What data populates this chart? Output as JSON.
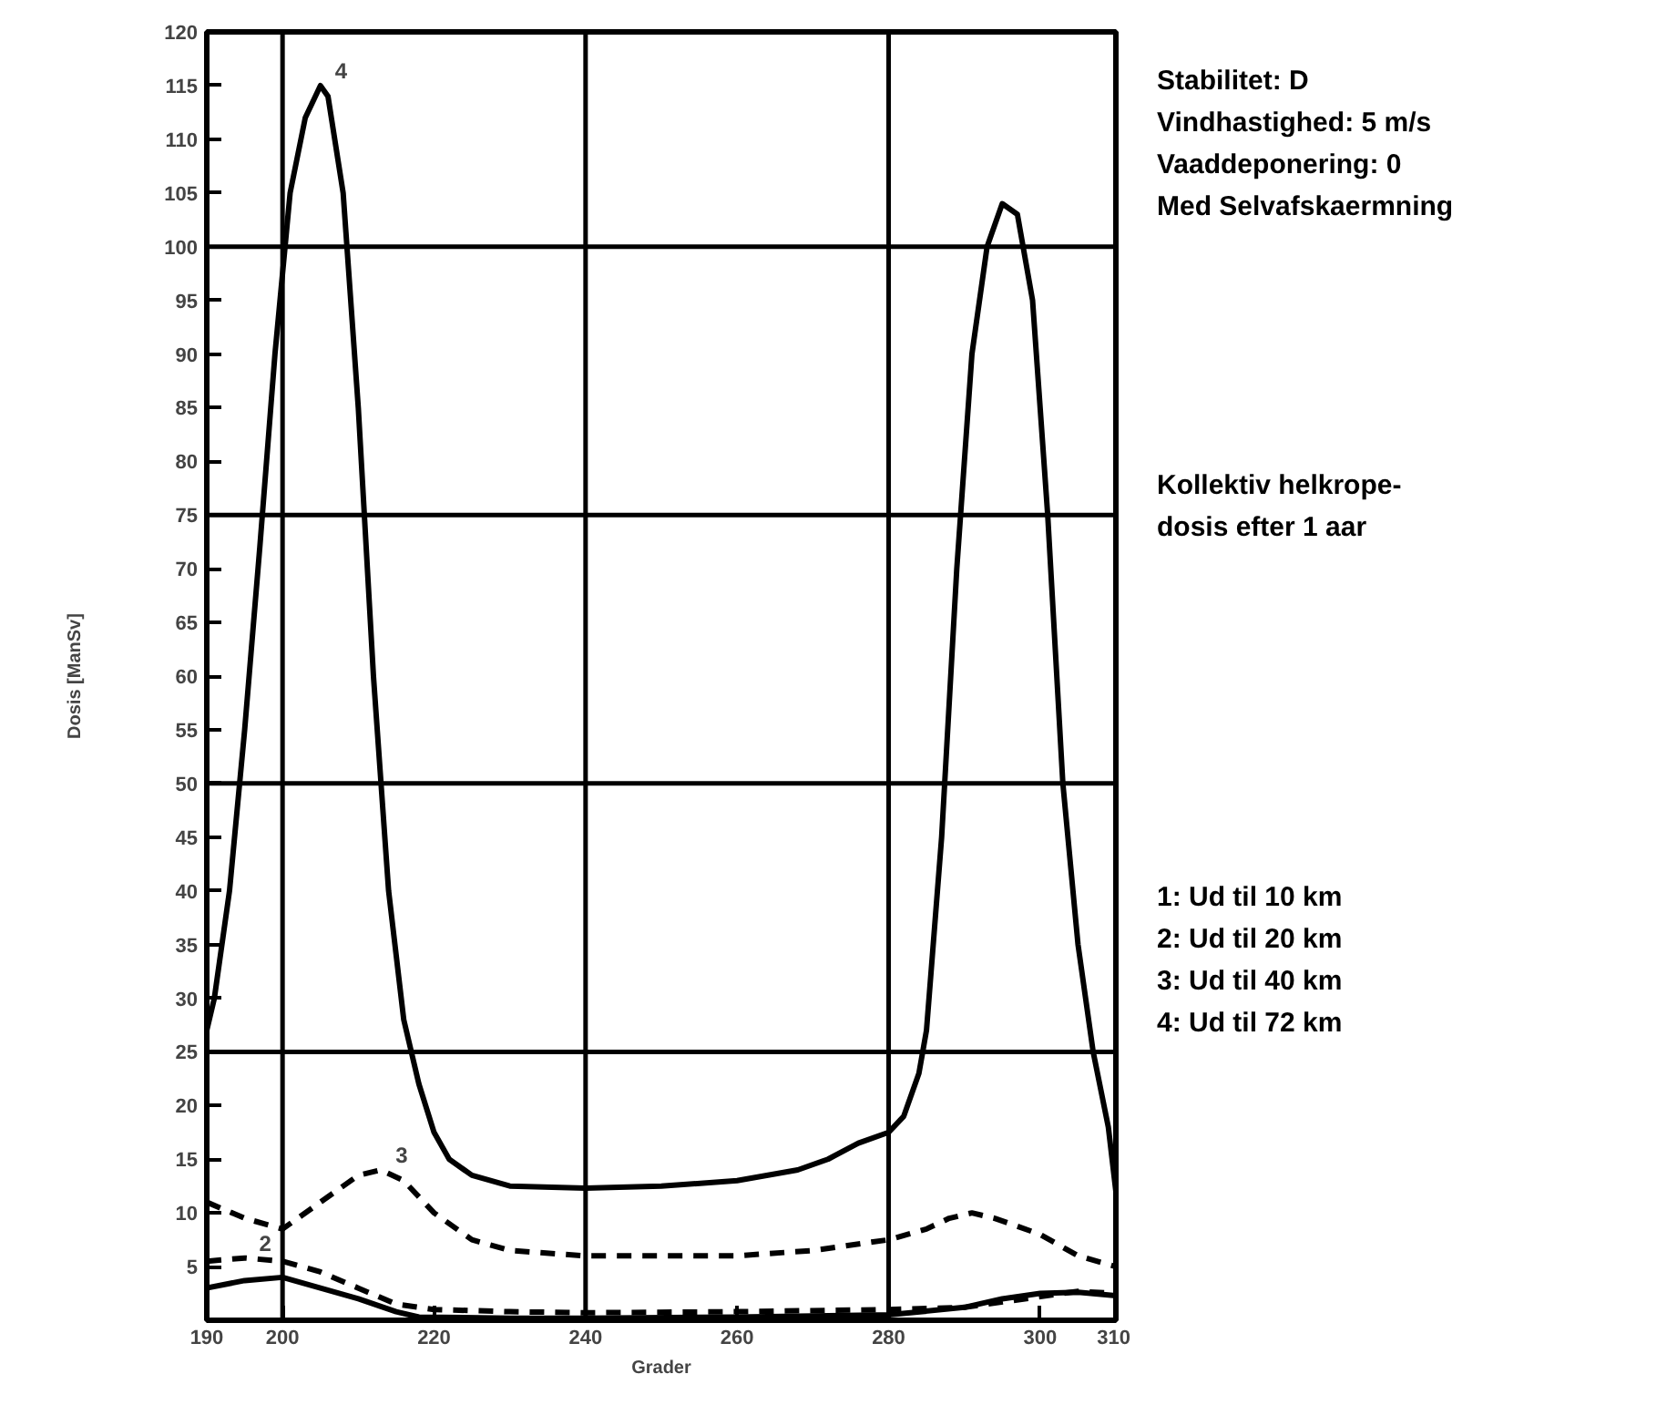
{
  "chart_data": {
    "type": "line",
    "xlabel": "Grader",
    "ylabel": "Dosis [ManSv]",
    "xlim": [
      190,
      310
    ],
    "ylim": [
      0,
      120
    ],
    "xticks": [
      190,
      200,
      220,
      240,
      260,
      280,
      300,
      310
    ],
    "yticks": [
      5,
      10,
      15,
      20,
      25,
      30,
      35,
      40,
      45,
      50,
      55,
      60,
      65,
      70,
      75,
      80,
      85,
      90,
      95,
      100,
      105,
      110,
      115,
      120
    ],
    "grid": false,
    "ref_lines": [
      {
        "axis": "y",
        "value": 25
      },
      {
        "axis": "y",
        "value": 50
      },
      {
        "axis": "y",
        "value": 75
      },
      {
        "axis": "y",
        "value": 100
      },
      {
        "axis": "x",
        "value": 200
      },
      {
        "axis": "x",
        "value": 240
      },
      {
        "axis": "x",
        "value": 280
      }
    ],
    "series": [
      {
        "color": "#000000",
        "line_style": "solid",
        "x": [
          190,
          195,
          200,
          205,
          210,
          215,
          218,
          230,
          240,
          260,
          280,
          290,
          295,
          300,
          305,
          310
        ],
        "values": [
          3,
          3.7,
          4,
          3,
          2,
          0.8,
          0.3,
          0.2,
          0.2,
          0.3,
          0.5,
          1.2,
          2,
          2.5,
          2.6,
          2.3
        ]
      },
      {
        "name": "2",
        "color": "#000000",
        "line_style": "dashed",
        "x": [
          190,
          195,
          200,
          205,
          210,
          215,
          220,
          230,
          240,
          260,
          280,
          290,
          300,
          305,
          310
        ],
        "values": [
          5.5,
          5.8,
          5.5,
          4.5,
          3,
          1.5,
          1,
          0.8,
          0.7,
          0.8,
          1,
          1.2,
          2.2,
          2.7,
          2.5
        ]
      },
      {
        "name": "3",
        "color": "#000000",
        "line_style": "dashed",
        "x": [
          190,
          195,
          200,
          205,
          210,
          213,
          216,
          220,
          225,
          230,
          240,
          260,
          270,
          280,
          285,
          288,
          291,
          294,
          300,
          305,
          310
        ],
        "values": [
          11,
          9.5,
          8.5,
          11,
          13.5,
          14,
          13,
          10,
          7.5,
          6.5,
          6,
          6,
          6.5,
          7.5,
          8.5,
          9.5,
          10,
          9.5,
          8,
          6,
          5
        ]
      },
      {
        "name": "4",
        "color": "#000000",
        "line_style": "solid",
        "x": [
          190,
          191,
          193,
          195,
          197,
          199,
          201,
          203,
          205,
          206,
          208,
          210,
          212,
          214,
          216,
          218,
          220,
          222,
          225,
          230,
          240,
          250,
          260,
          268,
          272,
          276,
          280,
          282,
          284,
          285,
          287,
          289,
          291,
          293,
          295,
          297,
          299,
          301,
          303,
          305,
          307,
          309,
          310
        ],
        "values": [
          27,
          30,
          40,
          55,
          72,
          90,
          105,
          112,
          115,
          114,
          105,
          85,
          60,
          40,
          28,
          22,
          17.5,
          15,
          13.5,
          12.5,
          12.3,
          12.5,
          13,
          14,
          15,
          16.5,
          17.5,
          19,
          23,
          27,
          45,
          70,
          90,
          100,
          104,
          103,
          95,
          75,
          50,
          35,
          25,
          18,
          12
        ]
      }
    ],
    "annotations": [
      "Stabilitet: D",
      "Vindhastighed: 5 m/s",
      "Vaaddeponering: 0",
      "Med Selvafskaermning",
      "Kollektiv helkrope-",
      "dosis efter 1 aar",
      "1: Ud til 10 km",
      "2: Ud til 20 km",
      "3: Ud til 40 km",
      "4: Ud til 72 km"
    ]
  }
}
